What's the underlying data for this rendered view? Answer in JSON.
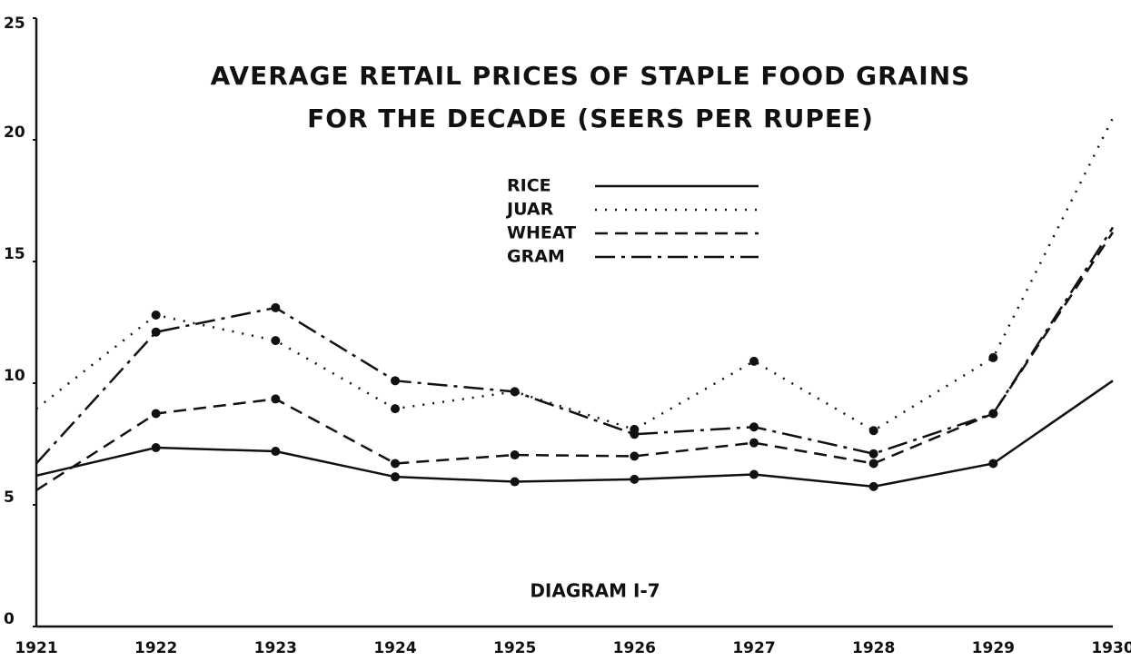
{
  "chart_data": {
    "type": "line",
    "title": [
      "AVERAGE RETAIL PRICES OF STAPLE FOOD GRAINS",
      "FOR THE DECADE (SEERS PER RUPEE)"
    ],
    "annotation": "DIAGRAM I-7",
    "categories": [
      "1921",
      "1922",
      "1923",
      "1924",
      "1925",
      "1926",
      "1927",
      "1928",
      "1929",
      "1930"
    ],
    "ylim": [
      0,
      25
    ],
    "yticks": [
      0,
      5,
      10,
      15,
      20,
      25
    ],
    "series": [
      {
        "name": "RICE",
        "color": "#111111",
        "dash": "solid",
        "values": [
          6.2,
          7.35,
          7.2,
          6.15,
          5.95,
          6.05,
          6.25,
          5.75,
          6.7,
          10.1
        ]
      },
      {
        "name": "JUAR",
        "color": "#111111",
        "dash": "dotted",
        "values": [
          8.95,
          12.8,
          11.75,
          8.95,
          9.65,
          8.1,
          10.9,
          8.05,
          11.05,
          20.9
        ]
      },
      {
        "name": "WHEAT",
        "color": "#111111",
        "dash": "dashed",
        "values": [
          5.6,
          8.75,
          9.35,
          6.7,
          7.05,
          7.0,
          7.55,
          6.7,
          8.75,
          16.2
        ]
      },
      {
        "name": "GRAM",
        "color": "#111111",
        "dash": "dashdot",
        "values": [
          6.7,
          12.1,
          13.1,
          10.1,
          9.65,
          7.9,
          8.2,
          7.1,
          8.75,
          16.4
        ]
      }
    ]
  }
}
